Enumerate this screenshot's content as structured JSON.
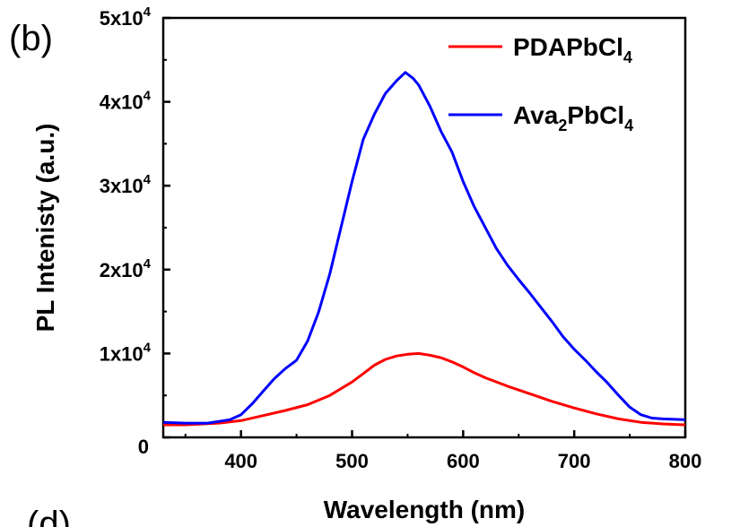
{
  "panel_labels": {
    "main": "(b)",
    "next": "(d)"
  },
  "chart_data": {
    "type": "line",
    "xlabel": "Wavelength (nm)",
    "ylabel": "PL Intenisty (a.u.)",
    "xlim": [
      330,
      800
    ],
    "ylim": [
      0,
      50000
    ],
    "x_ticks": [
      400,
      500,
      600,
      700,
      800
    ],
    "y_ticks": [
      {
        "value": 0,
        "base": "0",
        "exp": ""
      },
      {
        "value": 10000,
        "base": "1x10",
        "exp": "4"
      },
      {
        "value": 20000,
        "base": "2x10",
        "exp": "4"
      },
      {
        "value": 30000,
        "base": "3x10",
        "exp": "4"
      },
      {
        "value": 40000,
        "base": "4x10",
        "exp": "4"
      },
      {
        "value": 50000,
        "base": "5x10",
        "exp": "4"
      }
    ],
    "grid": false,
    "legend_position": "top-right",
    "series": [
      {
        "name": "PDAPbCl4",
        "legend_parts": {
          "main": "PDAPbCl",
          "sub": "4",
          "tail": ""
        },
        "color": "#ff0000",
        "x": [
          330,
          350,
          380,
          400,
          420,
          440,
          460,
          480,
          500,
          510,
          520,
          530,
          540,
          550,
          560,
          570,
          580,
          590,
          600,
          610,
          620,
          640,
          660,
          680,
          700,
          720,
          740,
          760,
          780,
          800
        ],
        "y": [
          1500,
          1500,
          1700,
          2000,
          2600,
          3200,
          3900,
          5000,
          6600,
          7600,
          8600,
          9300,
          9700,
          9900,
          10000,
          9800,
          9500,
          9000,
          8400,
          7700,
          7100,
          6100,
          5200,
          4300,
          3500,
          2800,
          2200,
          1800,
          1600,
          1500
        ]
      },
      {
        "name": "Ava2PbCl4",
        "legend_parts": {
          "main": "Ava",
          "sub": "2",
          "tail": "PbCl",
          "sub2": "4"
        },
        "color": "#0000ff",
        "x": [
          330,
          350,
          370,
          390,
          400,
          410,
          420,
          430,
          440,
          450,
          460,
          470,
          480,
          490,
          500,
          510,
          520,
          530,
          540,
          548,
          555,
          560,
          570,
          580,
          590,
          600,
          610,
          620,
          630,
          640,
          650,
          660,
          670,
          680,
          690,
          700,
          710,
          720,
          730,
          740,
          750,
          760,
          770,
          780,
          800
        ],
        "y": [
          1800,
          1700,
          1700,
          2100,
          2700,
          4000,
          5500,
          7000,
          8200,
          9200,
          11500,
          15000,
          19500,
          25000,
          30500,
          35500,
          38500,
          41000,
          42500,
          43500,
          42800,
          42000,
          39500,
          36500,
          34000,
          30500,
          27500,
          25000,
          22500,
          20500,
          18800,
          17200,
          15500,
          13800,
          12000,
          10500,
          9200,
          7800,
          6500,
          5000,
          3600,
          2700,
          2300,
          2200,
          2100
        ]
      }
    ]
  }
}
